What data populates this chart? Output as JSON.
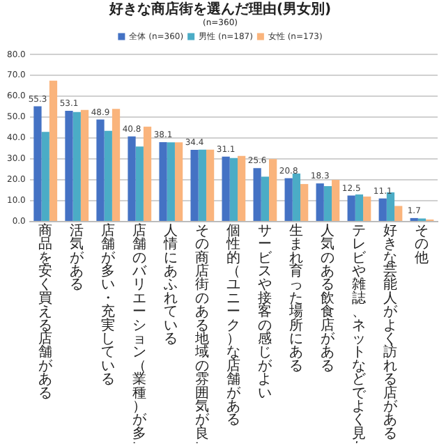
{
  "chart_data": {
    "type": "bar",
    "title": "好きな商店街を選んだ理由(男女別)",
    "subtitle": "(n=360)",
    "categories": [
      "商品を安く買える店舗がある",
      "活気がある",
      "店舗が多い・充実している",
      "店舗のバリエーション（業種）が多い",
      "人情にあふれている",
      "その商店街のある地域の雰囲気が良い",
      "個性的（ユニーク）な店舗がある",
      "サービスや接客の感じがよい",
      "生まれ育った場所にある",
      "人気のある飲食店がある",
      "テレビや雑誌、ネットなどでよく見かける",
      "好きな芸能人がよく訪れる店がある",
      "その他"
    ],
    "series": [
      {
        "name": "全体 (n=360)",
        "color": "#4472c4",
        "values": [
          55.3,
          53.1,
          48.9,
          40.8,
          38.1,
          34.4,
          31.1,
          25.6,
          20.8,
          18.3,
          12.5,
          11.1,
          1.7
        ],
        "value_labels": [
          "55.3",
          "53.1",
          "48.9",
          "40.8",
          "38.1",
          "34.4",
          "31.1",
          "25.6",
          "20.8",
          "18.3",
          "12.5",
          "11.1",
          "1.7"
        ]
      },
      {
        "name": "男性 (n=187)",
        "color": "#4bacc6",
        "values": [
          43,
          52.5,
          43.5,
          36,
          38,
          34.5,
          30.5,
          21.5,
          23,
          17,
          13,
          14,
          1.5
        ]
      },
      {
        "name": "女性 (n=173)",
        "color": "#fab47c",
        "values": [
          67.5,
          53.5,
          54,
          45.5,
          38,
          34.5,
          31.5,
          30,
          18,
          20,
          12,
          7.5,
          1
        ]
      }
    ],
    "ylim": [
      0,
      80
    ],
    "yticks": [
      {
        "value": 0,
        "label": "0.0"
      },
      {
        "value": 10,
        "label": "10.0"
      },
      {
        "value": 20,
        "label": "20.0"
      },
      {
        "value": 30,
        "label": "30.0"
      },
      {
        "value": 40,
        "label": "40.0"
      },
      {
        "value": 50,
        "label": "50.0"
      },
      {
        "value": 60,
        "label": "60.0"
      },
      {
        "value": 70,
        "label": "70.0"
      },
      {
        "value": 80,
        "label": "80.0"
      }
    ],
    "grid": "y",
    "legend": "top"
  }
}
